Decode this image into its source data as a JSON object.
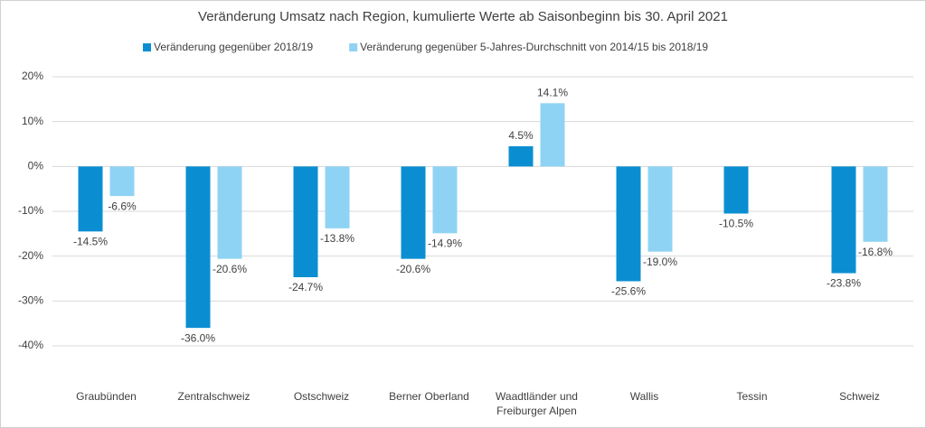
{
  "chart_data": {
    "type": "bar",
    "title": "Veränderung Umsatz nach Region, kumulierte Werte ab Saisonbeginn bis 30. April 2021",
    "categories": [
      "Graubünden",
      "Zentralschweiz",
      "Ostschweiz",
      "Berner Oberland",
      "Waadtländer und\nFreiburger Alpen",
      "Wallis",
      "Tessin",
      "Schweiz"
    ],
    "series": [
      {
        "name": "Veränderung gegenüber 2018/19",
        "color": "#0b8ed1",
        "values": [
          -14.5,
          -36.0,
          -24.7,
          -20.6,
          4.5,
          -25.6,
          -10.5,
          -23.8
        ],
        "value_labels": [
          "-14.5%",
          "-36.0%",
          "-24.7%",
          "-20.6%",
          "4.5%",
          "-25.6%",
          "-10.5%",
          "-23.8%"
        ]
      },
      {
        "name": "Veränderung gegenüber 5-Jahres-Durchschnitt von 2014/15 bis 2018/19",
        "color": "#8fd3f4",
        "values": [
          -6.6,
          -20.6,
          -13.8,
          -14.9,
          14.1,
          -19.0,
          null,
          -16.8
        ],
        "value_labels": [
          "-6.6%",
          "-20.6%",
          "-13.8%",
          "-14.9%",
          "14.1%",
          "-19.0%",
          null,
          "-16.8%"
        ]
      }
    ],
    "ylim": [
      -40,
      20
    ],
    "yticks": [
      {
        "value": -40,
        "label": "-40%"
      },
      {
        "value": -30,
        "label": "-30%"
      },
      {
        "value": -20,
        "label": "-20%"
      },
      {
        "value": -10,
        "label": "-10%"
      },
      {
        "value": 0,
        "label": "0%"
      },
      {
        "value": 10,
        "label": "10%"
      },
      {
        "value": 20,
        "label": "20%"
      }
    ],
    "grid": true,
    "legend": "top"
  }
}
